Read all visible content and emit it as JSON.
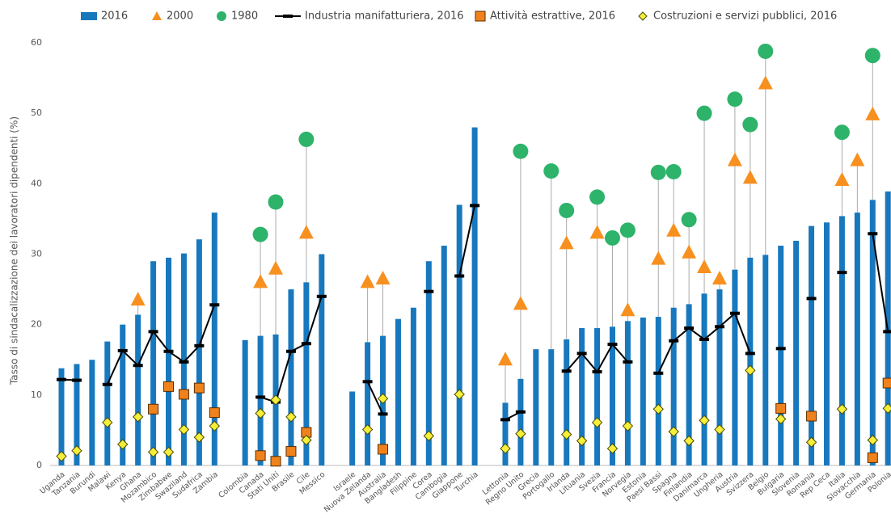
{
  "chart_data": {
    "type": "bar",
    "y_label": "Tasso di sindacalizzazione dei lavoratori dipendenti (%)",
    "categories": [
      "Uganda",
      "Tanzania",
      "Burundi",
      "Malawi",
      "Kenya",
      "Ghana",
      "Mozambico",
      "Zimbabwe",
      "Swaziland",
      "Sudafrica",
      "Zambia",
      null,
      "Colombia",
      "Canada",
      "Stati Uniti",
      "Brasile",
      "Cile",
      "Messico",
      null,
      "Israele",
      "Nuova Zelanda",
      "Australia",
      "Bangladesh",
      "Filippine",
      "Corea",
      "Cambogia",
      "Giappone",
      "Turchia",
      null,
      "Lettonia",
      "Regno Unito",
      "Grecia",
      "Portogallo",
      "Irlanda",
      "Lituania",
      "Svezia",
      "Francia",
      "Norvegia",
      "Estonia",
      "Paesi Bassi",
      "Spagna",
      "Finlandia",
      "Danimarca",
      "Ungheria",
      "Austria",
      "Svizzera",
      "Belgio",
      "Bulgaria",
      "Slovenia",
      "Romania",
      "Rep Ceca",
      "Italia",
      "Slovacchia",
      "Germania",
      "Polonia"
    ],
    "ylim": [
      0,
      60
    ],
    "yticks": [
      0,
      10,
      20,
      30,
      40,
      50,
      60
    ],
    "grid": false,
    "legend": "top",
    "series": [
      {
        "name": "2016",
        "type": "bar",
        "color": "#1878bd",
        "values": [
          13.8,
          14.4,
          15.0,
          17.6,
          20.0,
          21.4,
          29.0,
          29.5,
          30.1,
          32.1,
          35.9,
          null,
          17.8,
          18.4,
          18.6,
          25.0,
          26.0,
          30.0,
          null,
          10.5,
          17.5,
          18.4,
          20.8,
          22.4,
          29.0,
          31.2,
          37.0,
          48.0,
          null,
          8.9,
          12.3,
          16.5,
          16.5,
          17.9,
          19.5,
          19.5,
          19.7,
          20.5,
          21.0,
          21.1,
          22.4,
          22.9,
          24.4,
          25.0,
          27.8,
          29.5,
          29.9,
          31.2,
          31.9,
          34.0,
          34.5,
          35.4,
          35.9,
          37.7,
          38.9
        ]
      },
      {
        "name": "2000",
        "type": "scatter",
        "marker": "triangle",
        "color": "#f7901e",
        "values": [
          null,
          null,
          null,
          null,
          null,
          23.5,
          null,
          null,
          null,
          null,
          null,
          null,
          null,
          26.0,
          27.9,
          null,
          33.0,
          null,
          null,
          null,
          26.0,
          26.5,
          null,
          null,
          null,
          null,
          null,
          null,
          null,
          15.0,
          22.9,
          null,
          null,
          31.5,
          null,
          33.0,
          null,
          22.0,
          null,
          29.3,
          33.3,
          30.2,
          28.1,
          26.5,
          43.3,
          40.8,
          54.2,
          null,
          null,
          null,
          null,
          40.5,
          43.3,
          49.8,
          null
        ]
      },
      {
        "name": "1980",
        "type": "scatter",
        "marker": "circle",
        "color": "#2db36a",
        "values": [
          null,
          null,
          null,
          null,
          null,
          null,
          null,
          null,
          null,
          null,
          null,
          null,
          null,
          32.8,
          37.4,
          null,
          46.3,
          null,
          null,
          null,
          null,
          null,
          null,
          null,
          null,
          null,
          null,
          null,
          null,
          null,
          44.6,
          null,
          41.8,
          36.2,
          null,
          38.1,
          32.3,
          33.4,
          null,
          41.6,
          41.7,
          34.9,
          50.0,
          null,
          52.0,
          48.4,
          58.8,
          null,
          null,
          null,
          null,
          47.3,
          null,
          58.2,
          null
        ]
      },
      {
        "name": "Industria manifatturiera, 2016",
        "type": "line",
        "marker": "dash",
        "color": "#000000",
        "values": [
          12.2,
          12.1,
          null,
          11.5,
          16.3,
          14.2,
          19.0,
          16.2,
          14.7,
          17.0,
          22.8,
          null,
          null,
          9.7,
          9.0,
          16.2,
          17.3,
          24.0,
          null,
          null,
          11.9,
          7.3,
          null,
          null,
          24.7,
          null,
          26.9,
          36.9,
          null,
          6.5,
          7.6,
          null,
          null,
          13.4,
          15.9,
          13.3,
          17.2,
          14.7,
          null,
          13.1,
          17.7,
          19.5,
          17.9,
          19.7,
          21.6,
          15.9,
          null,
          16.6,
          null,
          23.7,
          null,
          27.4,
          null,
          32.9,
          19.0
        ]
      },
      {
        "name": "Attività estrattive, 2016",
        "type": "scatter",
        "marker": "square",
        "color": "#f0821e",
        "values": [
          null,
          null,
          null,
          null,
          null,
          null,
          8.0,
          11.2,
          10.1,
          11.0,
          7.5,
          null,
          null,
          1.4,
          0.6,
          2.0,
          4.7,
          null,
          null,
          null,
          null,
          2.3,
          null,
          null,
          null,
          null,
          null,
          null,
          null,
          null,
          null,
          null,
          null,
          null,
          null,
          null,
          null,
          null,
          null,
          null,
          null,
          null,
          null,
          null,
          null,
          null,
          null,
          8.1,
          null,
          7.0,
          null,
          null,
          null,
          1.1,
          11.7
        ]
      },
      {
        "name": "Costruzioni e servizi pubblici, 2016",
        "type": "scatter",
        "marker": "diamond",
        "color": "#f5ee3a",
        "values": [
          1.3,
          2.1,
          null,
          6.1,
          3.0,
          6.9,
          1.9,
          1.9,
          5.1,
          4.0,
          5.6,
          null,
          null,
          7.4,
          9.3,
          6.9,
          3.6,
          null,
          null,
          null,
          5.1,
          9.5,
          null,
          null,
          4.2,
          null,
          10.1,
          null,
          null,
          2.4,
          4.5,
          null,
          null,
          4.4,
          3.5,
          6.1,
          2.4,
          5.6,
          null,
          8.0,
          4.8,
          3.5,
          6.4,
          5.1,
          null,
          13.5,
          null,
          6.6,
          null,
          3.3,
          null,
          8.0,
          null,
          3.6,
          8.1
        ]
      }
    ]
  }
}
